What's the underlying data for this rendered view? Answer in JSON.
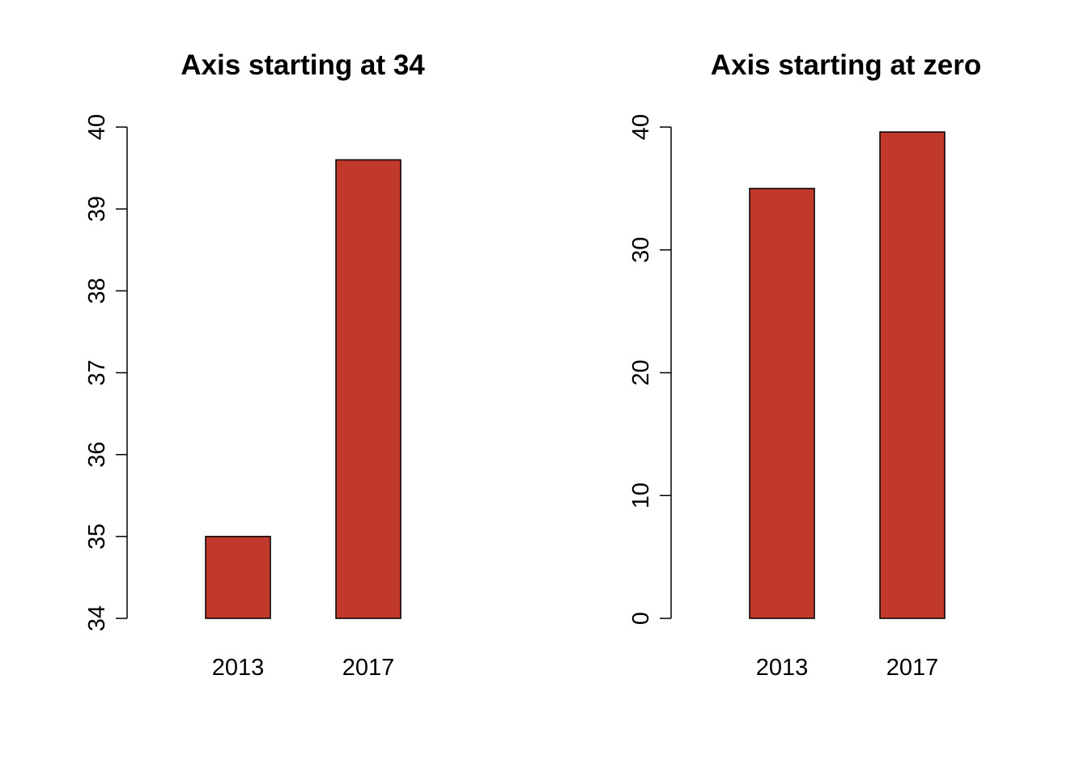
{
  "bar_color": "#C0392B",
  "chart_data": [
    {
      "type": "bar",
      "title": "Axis starting at 34",
      "categories": [
        "2013",
        "2017"
      ],
      "values": [
        35,
        39.6
      ],
      "ylim": [
        34,
        40
      ],
      "yticks": [
        34,
        35,
        36,
        37,
        38,
        39,
        40
      ],
      "ytick_labels": [
        "34",
        "35",
        "36",
        "37",
        "38",
        "39",
        "40"
      ],
      "xlabel": "",
      "ylabel": "",
      "grid": false
    },
    {
      "type": "bar",
      "title": "Axis starting at zero",
      "categories": [
        "2013",
        "2017"
      ],
      "values": [
        35,
        39.6
      ],
      "ylim": [
        0,
        40
      ],
      "yticks": [
        0,
        10,
        20,
        30,
        40
      ],
      "ytick_labels": [
        "0",
        "10",
        "20",
        "30",
        "40"
      ],
      "xlabel": "",
      "ylabel": "",
      "grid": false
    }
  ]
}
